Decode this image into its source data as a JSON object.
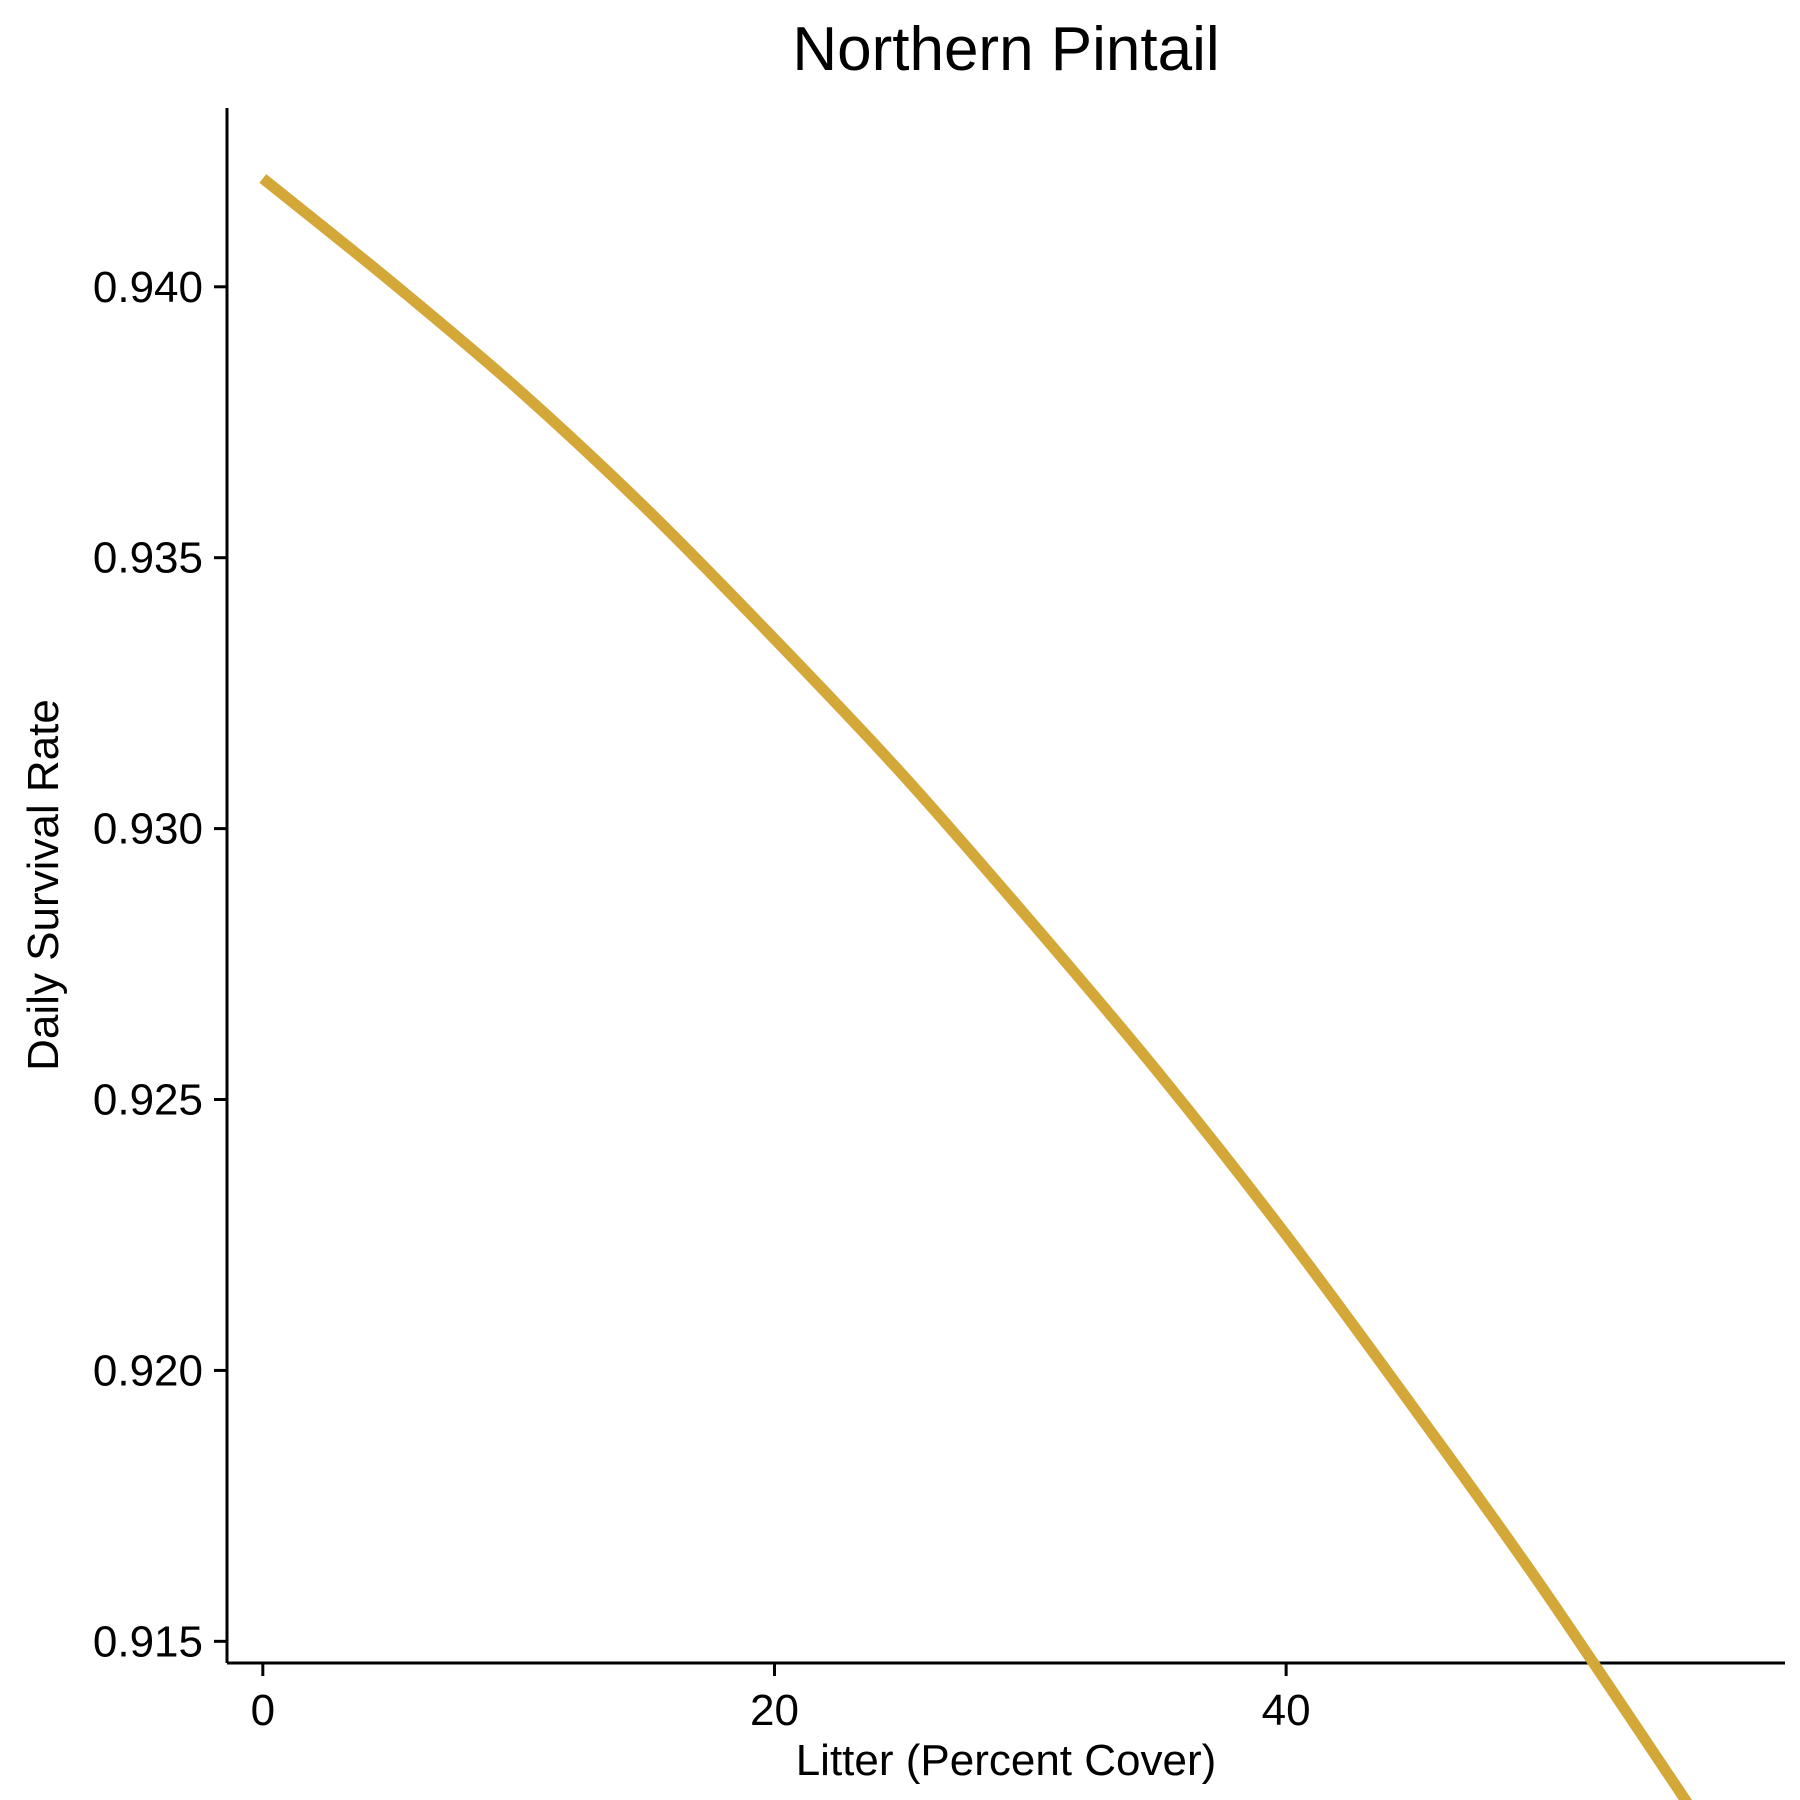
{
  "chart_data": {
    "type": "line",
    "title": "Northern Pintail",
    "xlabel": "Litter (Percent Cover)",
    "ylabel": "Daily Survival Rate",
    "xlim": [
      -1.4,
      59.5
    ],
    "ylim": [
      0.9146,
      0.9433
    ],
    "xticks": [
      0,
      20,
      40
    ],
    "xtick_labels": [
      "0",
      "20",
      "40"
    ],
    "yticks": [
      0.915,
      0.92,
      0.925,
      0.93,
      0.935,
      0.94
    ],
    "ytick_labels": [
      "0.915",
      "0.920",
      "0.925",
      "0.930",
      "0.935",
      "0.940"
    ],
    "grid": false,
    "line_color": "#D4A838",
    "series": [
      {
        "x": [
          0,
          5,
          10,
          15,
          20,
          25,
          30,
          35,
          40,
          45,
          50,
          56.7
        ],
        "values": [
          0.942,
          0.9401,
          0.9381,
          0.9359,
          0.9335,
          0.931,
          0.9283,
          0.9255,
          0.9225,
          0.9193,
          0.916,
          0.9113
        ]
      }
    ]
  }
}
